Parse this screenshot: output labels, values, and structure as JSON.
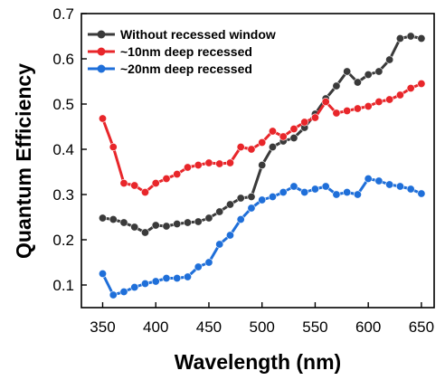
{
  "chart_data": {
    "type": "line",
    "xlabel": "Wavelength (nm)",
    "ylabel": "Quantum Efficiency",
    "xlim": [
      330,
      662
    ],
    "ylim": [
      0.05,
      0.7
    ],
    "xticks": [
      350,
      400,
      450,
      500,
      550,
      600,
      650
    ],
    "yticks": [
      0.1,
      0.2,
      0.3,
      0.4,
      0.5,
      0.6,
      0.7
    ],
    "grid": false,
    "legend_position": "top-left",
    "series": [
      {
        "name": "Without recessed window",
        "color": "#3a3a3a",
        "x": [
          350,
          360,
          370,
          380,
          390,
          400,
          410,
          420,
          430,
          440,
          450,
          460,
          470,
          480,
          490,
          500,
          510,
          520,
          530,
          540,
          550,
          560,
          570,
          580,
          590,
          600,
          610,
          620,
          630,
          640,
          650
        ],
        "y": [
          0.248,
          0.245,
          0.238,
          0.228,
          0.216,
          0.232,
          0.23,
          0.235,
          0.238,
          0.24,
          0.248,
          0.262,
          0.278,
          0.292,
          0.295,
          0.365,
          0.405,
          0.418,
          0.425,
          0.448,
          0.478,
          0.512,
          0.54,
          0.572,
          0.548,
          0.565,
          0.572,
          0.598,
          0.645,
          0.65,
          0.645
        ]
      },
      {
        "name": "~10nm deep recessed",
        "color": "#e8262a",
        "x": [
          350,
          360,
          370,
          380,
          390,
          400,
          410,
          420,
          430,
          440,
          450,
          460,
          470,
          480,
          490,
          500,
          510,
          520,
          530,
          540,
          550,
          560,
          570,
          580,
          590,
          600,
          610,
          620,
          630,
          640,
          650
        ],
        "y": [
          0.468,
          0.405,
          0.325,
          0.32,
          0.305,
          0.325,
          0.335,
          0.345,
          0.36,
          0.365,
          0.37,
          0.368,
          0.37,
          0.405,
          0.4,
          0.415,
          0.44,
          0.428,
          0.445,
          0.46,
          0.47,
          0.505,
          0.48,
          0.485,
          0.49,
          0.495,
          0.505,
          0.51,
          0.52,
          0.535,
          0.545
        ]
      },
      {
        "name": "~20nm deep recessed",
        "color": "#1f6fd9",
        "x": [
          350,
          360,
          370,
          380,
          390,
          400,
          410,
          420,
          430,
          440,
          450,
          460,
          470,
          480,
          490,
          500,
          510,
          520,
          530,
          540,
          550,
          560,
          570,
          580,
          590,
          600,
          610,
          620,
          630,
          640,
          650
        ],
        "y": [
          0.125,
          0.078,
          0.085,
          0.095,
          0.103,
          0.108,
          0.115,
          0.115,
          0.118,
          0.14,
          0.15,
          0.19,
          0.21,
          0.245,
          0.27,
          0.288,
          0.295,
          0.305,
          0.318,
          0.305,
          0.312,
          0.318,
          0.3,
          0.305,
          0.3,
          0.335,
          0.33,
          0.322,
          0.318,
          0.312,
          0.302
        ]
      }
    ]
  }
}
